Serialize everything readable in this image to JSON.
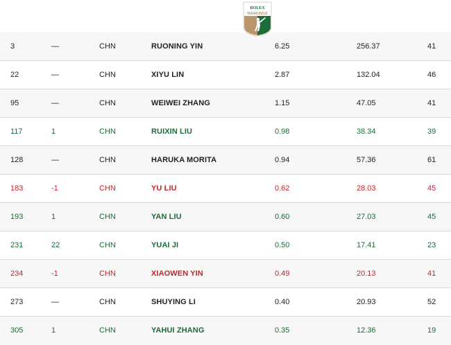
{
  "logo": {
    "brand": "ROLEX",
    "subtitle": "RANKINGS",
    "icon": "rolex-rankings-golfer-logo"
  },
  "colors": {
    "up": "#1b6b3a",
    "down": "#c1272d",
    "neutral": "#222222",
    "logo_green": "#1f6b3c",
    "logo_gold": "#b8956a"
  },
  "rows": [
    {
      "rank": "3",
      "move": "—",
      "nat": "CHN",
      "name": "RUONING YIN",
      "avg": "6.25",
      "total": "256.37",
      "events": "41",
      "trend": "neutral"
    },
    {
      "rank": "22",
      "move": "—",
      "nat": "CHN",
      "name": "XIYU LIN",
      "avg": "2.87",
      "total": "132.04",
      "events": "46",
      "trend": "neutral"
    },
    {
      "rank": "95",
      "move": "—",
      "nat": "CHN",
      "name": "WEIWEI ZHANG",
      "avg": "1.15",
      "total": "47.05",
      "events": "41",
      "trend": "neutral"
    },
    {
      "rank": "117",
      "move": "1",
      "nat": "CHN",
      "name": "RUIXIN LIU",
      "avg": "0.98",
      "total": "38.34",
      "events": "39",
      "trend": "up"
    },
    {
      "rank": "128",
      "move": "—",
      "nat": "CHN",
      "name": "HARUKA MORITA",
      "avg": "0.94",
      "total": "57.36",
      "events": "61",
      "trend": "neutral"
    },
    {
      "rank": "183",
      "move": "-1",
      "nat": "CHN",
      "name": "YU LIU",
      "avg": "0.62",
      "total": "28.03",
      "events": "45",
      "trend": "down"
    },
    {
      "rank": "193",
      "move": "1",
      "nat": "CHN",
      "name": "YAN LIU",
      "avg": "0.60",
      "total": "27.03",
      "events": "45",
      "trend": "up"
    },
    {
      "rank": "231",
      "move": "22",
      "nat": "CHN",
      "name": "YUAI JI",
      "avg": "0.50",
      "total": "17.41",
      "events": "23",
      "trend": "up"
    },
    {
      "rank": "234",
      "move": "-1",
      "nat": "CHN",
      "name": "XIAOWEN YIN",
      "avg": "0.49",
      "total": "20.13",
      "events": "41",
      "trend": "down"
    },
    {
      "rank": "273",
      "move": "—",
      "nat": "CHN",
      "name": "SHUYING LI",
      "avg": "0.40",
      "total": "20.93",
      "events": "52",
      "trend": "neutral"
    },
    {
      "rank": "305",
      "move": "1",
      "nat": "CHN",
      "name": "YAHUI ZHANG",
      "avg": "0.35",
      "total": "12.36",
      "events": "19",
      "trend": "up"
    }
  ]
}
